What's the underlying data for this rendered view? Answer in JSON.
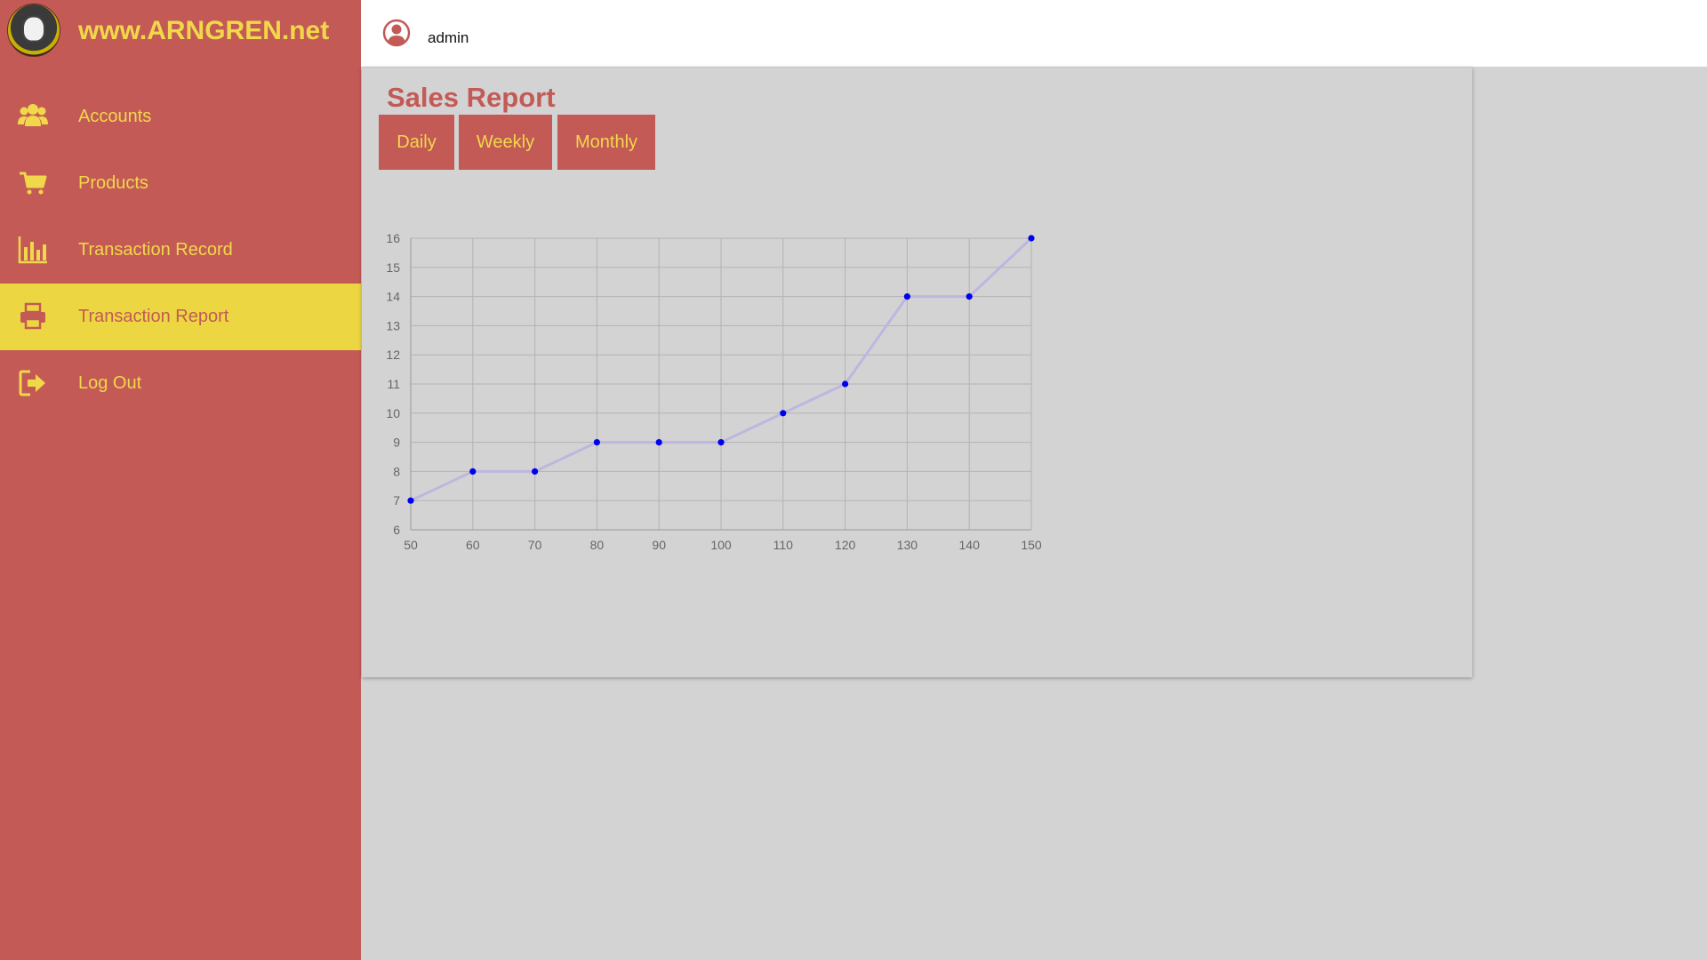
{
  "brand": {
    "name": "www.ARNGREN.net",
    "logo": "arngren-logo"
  },
  "sidebar": {
    "items": [
      {
        "label": "Accounts",
        "icon": "users-icon",
        "active": false
      },
      {
        "label": "Products",
        "icon": "cart-icon",
        "active": false
      },
      {
        "label": "Transaction Record",
        "icon": "bar-chart-icon",
        "active": false
      },
      {
        "label": "Transaction Report",
        "icon": "printer-icon",
        "active": true
      },
      {
        "label": "Log Out",
        "icon": "logout-icon",
        "active": false
      }
    ]
  },
  "topbar": {
    "user_icon": "user-circle-icon",
    "username": "admin"
  },
  "report": {
    "title": "Sales Report",
    "buttons": {
      "daily": "Daily",
      "weekly": "Weekly",
      "monthly": "Monthly"
    }
  },
  "colors": {
    "sidebar": "#c35a56",
    "accent_yellow": "#f1d84a",
    "active_item": "#ecd743",
    "content_bg": "#d3d3d3",
    "line": "#bdb7e0",
    "point": "#0000ee"
  },
  "chart_data": {
    "type": "line",
    "x": [
      50,
      60,
      70,
      80,
      90,
      100,
      110,
      120,
      130,
      140,
      150
    ],
    "y": [
      7,
      8,
      8,
      9,
      9,
      9,
      10,
      11,
      14,
      14,
      16
    ],
    "xlim": [
      50,
      150
    ],
    "ylim": [
      6,
      16
    ],
    "xticks": [
      50,
      60,
      70,
      80,
      90,
      100,
      110,
      120,
      130,
      140,
      150
    ],
    "yticks": [
      6,
      7,
      8,
      9,
      10,
      11,
      12,
      13,
      14,
      15,
      16
    ],
    "grid": true,
    "legend": "none"
  }
}
